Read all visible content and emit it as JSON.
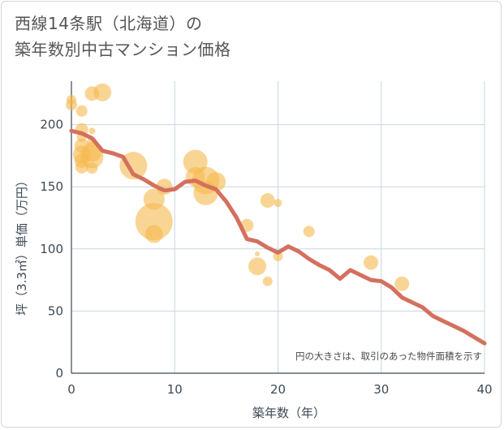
{
  "chart_data": {
    "type": "scatter",
    "title_lines": [
      "西線14条駅（北海道）の",
      "築年数別中古マンション価格"
    ],
    "xlabel": "築年数（年）",
    "ylabel": "坪（3.3㎡）単価（万円）",
    "xlim": [
      0,
      40
    ],
    "ylim": [
      0,
      235
    ],
    "x_ticks": [
      0,
      10,
      20,
      30,
      40
    ],
    "y_ticks": [
      0,
      50,
      100,
      150,
      200
    ],
    "grid": true,
    "note": "円の大きさは、取引のあった物件面積を示す",
    "colors": {
      "bubble": "#f5b94f",
      "trend": "#d4705e",
      "grid": "#c9d6e1",
      "axis": "#3d4a55"
    },
    "bubbles": [
      {
        "x": 0,
        "y": 220,
        "size": 6
      },
      {
        "x": 0,
        "y": 216,
        "size": 7
      },
      {
        "x": 1,
        "y": 211,
        "size": 7
      },
      {
        "x": 1,
        "y": 196,
        "size": 8
      },
      {
        "x": 1,
        "y": 190,
        "size": 6
      },
      {
        "x": 1,
        "y": 183,
        "size": 9
      },
      {
        "x": 1,
        "y": 176,
        "size": 11
      },
      {
        "x": 1,
        "y": 171,
        "size": 9
      },
      {
        "x": 1,
        "y": 166,
        "size": 8
      },
      {
        "x": 2,
        "y": 225,
        "size": 9
      },
      {
        "x": 2,
        "y": 195,
        "size": 4
      },
      {
        "x": 2,
        "y": 186,
        "size": 6
      },
      {
        "x": 2,
        "y": 178,
        "size": 12
      },
      {
        "x": 2,
        "y": 174,
        "size": 14
      },
      {
        "x": 2,
        "y": 165,
        "size": 7
      },
      {
        "x": 3,
        "y": 226,
        "size": 11
      },
      {
        "x": 6,
        "y": 167,
        "size": 17
      },
      {
        "x": 8,
        "y": 140,
        "size": 13
      },
      {
        "x": 8,
        "y": 122,
        "size": 23
      },
      {
        "x": 8,
        "y": 112,
        "size": 11
      },
      {
        "x": 9,
        "y": 150,
        "size": 10
      },
      {
        "x": 12,
        "y": 170,
        "size": 15
      },
      {
        "x": 12,
        "y": 158,
        "size": 12
      },
      {
        "x": 13,
        "y": 155,
        "size": 17
      },
      {
        "x": 13,
        "y": 145,
        "size": 15
      },
      {
        "x": 14,
        "y": 154,
        "size": 12
      },
      {
        "x": 17,
        "y": 119,
        "size": 8
      },
      {
        "x": 18,
        "y": 96,
        "size": 3
      },
      {
        "x": 18,
        "y": 86,
        "size": 11
      },
      {
        "x": 19,
        "y": 139,
        "size": 9
      },
      {
        "x": 19,
        "y": 74,
        "size": 6
      },
      {
        "x": 20,
        "y": 137,
        "size": 5
      },
      {
        "x": 20,
        "y": 94,
        "size": 6
      },
      {
        "x": 23,
        "y": 114,
        "size": 7
      },
      {
        "x": 29,
        "y": 89,
        "size": 9
      },
      {
        "x": 32,
        "y": 72,
        "size": 9
      }
    ],
    "trend": {
      "x": [
        0,
        1,
        2,
        3,
        4,
        5,
        6,
        7,
        8,
        9,
        10,
        11,
        12,
        13,
        14,
        15,
        16,
        17,
        18,
        19,
        20,
        21,
        22,
        23,
        24,
        25,
        26,
        27,
        28,
        29,
        30,
        31,
        32,
        33,
        34,
        35,
        36,
        37,
        38,
        39,
        40
      ],
      "y": [
        195,
        193,
        189,
        179,
        177,
        174,
        160,
        156,
        151,
        147,
        148,
        154,
        155,
        151,
        148,
        138,
        125,
        108,
        106,
        101,
        97,
        102,
        98,
        92,
        87,
        83,
        76,
        83,
        79,
        75,
        74,
        69,
        61,
        57,
        53,
        46,
        42,
        38,
        34,
        29,
        24
      ]
    }
  }
}
